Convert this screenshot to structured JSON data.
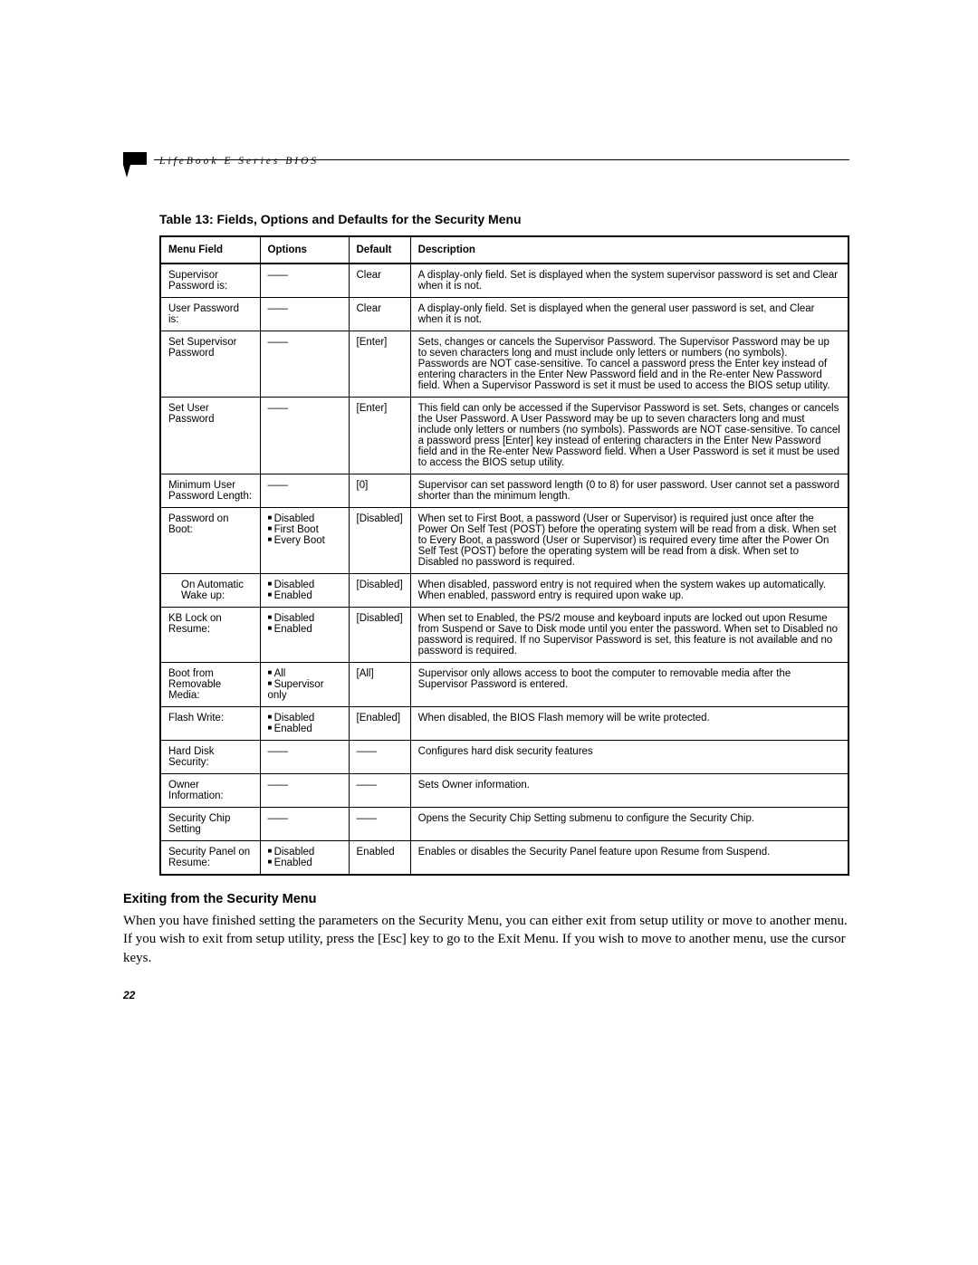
{
  "header": {
    "text": "LifeBook E Series BIOS"
  },
  "tableTitle": "Table 13: Fields, Options and Defaults for the Security Menu",
  "columns": [
    "Menu Field",
    "Options",
    "Default",
    "Description"
  ],
  "rows": [
    {
      "menu": "Supervisor Password is:",
      "opts": "—",
      "def": "Clear",
      "desc": "A display-only field. Set is displayed when the system supervisor password is set and Clear when it is not."
    },
    {
      "menu": "User Password is:",
      "opts": "—",
      "def": "Clear",
      "desc": "A display-only field. Set is displayed when the general user password is set, and Clear when it is not."
    },
    {
      "menu": "Set Supervisor Password",
      "opts": "—",
      "def": "[Enter]",
      "desc": "Sets, changes or cancels the Supervisor Password. The Supervisor Password may be up to seven characters long and must include only letters or numbers (no symbols). Passwords are NOT case-sensitive. To cancel a password press the Enter key instead of entering characters in the Enter New Password field and in the Re-enter New Password field. When a Supervisor Password is set it must be used to access the BIOS setup utility."
    },
    {
      "menu": "Set User Password",
      "opts": "—",
      "def": "[Enter]",
      "desc": "This field can only be accessed if the Supervisor Password is set. Sets, changes or cancels the User Password. A User Password may be up to seven characters long and must include only letters or numbers (no symbols). Passwords are NOT case-sensitive. To cancel a password press [Enter] key instead of entering characters in the Enter New Password field and in the Re-enter New Password field. When a User Password is set it must be used to access the BIOS setup utility."
    },
    {
      "menu": "Minimum User Password Length:",
      "opts": "—",
      "def": "[0]",
      "desc": "Supervisor can set password length (0 to 8) for user password. User cannot set a password shorter than the minimum length."
    },
    {
      "menu": "Password on Boot:",
      "optsList": [
        "Disabled",
        "First Boot",
        "Every Boot"
      ],
      "def": "[Disabled]",
      "desc": "When set to First Boot, a password (User or Supervisor) is required just once after the Power On Self Test (POST) before the operating system will be read from a disk. When set to Every Boot, a password (User or Supervisor) is required every time after the Power On Self Test (POST) before the operating system will be read from a disk. When set to Disabled no password is required."
    },
    {
      "menu": "On Automatic Wake up:",
      "indent": true,
      "optsList": [
        "Disabled",
        "Enabled"
      ],
      "def": "[Disabled]",
      "desc": "When disabled, password entry is not required when the system wakes up automatically. When enabled, password entry is required upon wake up."
    },
    {
      "menu": "KB Lock on Resume:",
      "optsList": [
        "Disabled",
        "Enabled"
      ],
      "def": "[Disabled]",
      "desc": "When set to Enabled, the PS/2 mouse and keyboard inputs are locked out upon Resume from Suspend or Save to Disk mode until you enter the password. When set to Disabled no password is required. If no Supervisor Password is set, this feature is not available and no password is required."
    },
    {
      "menu": "Boot from Removable Media:",
      "optsList": [
        "All",
        "Supervisor only"
      ],
      "def": "[All]",
      "desc": "Supervisor only allows access to boot the computer to removable media after the Supervisor Password is entered."
    },
    {
      "menu": "Flash Write:",
      "optsList": [
        "Disabled",
        "Enabled"
      ],
      "def": "[Enabled]",
      "desc": "When disabled, the BIOS Flash memory will be write protected."
    },
    {
      "menu": "Hard Disk Security:",
      "opts": "—",
      "def": "—",
      "desc": "Configures hard disk security features"
    },
    {
      "menu": "Owner Information:",
      "opts": "—",
      "def": "—",
      "desc": "Sets Owner information."
    },
    {
      "menu": "Security Chip Setting",
      "opts": "—",
      "def": "—",
      "desc": "Opens the Security Chip Setting submenu to configure the Security Chip."
    },
    {
      "menu": "Security Panel on Resume:",
      "optsList": [
        "Disabled",
        "Enabled"
      ],
      "def": "Enabled",
      "desc": "Enables or disables the Security Panel feature upon Resume from Suspend."
    }
  ],
  "sectionTitle": "Exiting from the Security Menu",
  "bodyText": "When you have finished setting the parameters on the Security Menu, you can either exit from setup utility or move to another menu. If you wish to exit from setup utility, press the [Esc] key to go to the Exit Menu. If you wish to move to another menu, use the cursor keys.",
  "pageNumber": "22"
}
